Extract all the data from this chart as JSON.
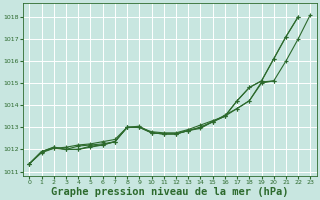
{
  "background_color": "#c8e6e0",
  "grid_color": "#ffffff",
  "line_color": "#2d6a2d",
  "xlabel": "Graphe pression niveau de la mer (hPa)",
  "xlabel_fontsize": 7.5,
  "xlim": [
    -0.5,
    23.5
  ],
  "ylim": [
    1010.8,
    1018.6
  ],
  "yticks": [
    1011,
    1012,
    1013,
    1014,
    1015,
    1016,
    1017,
    1018
  ],
  "xticks": [
    0,
    1,
    2,
    3,
    4,
    5,
    6,
    7,
    8,
    9,
    10,
    11,
    12,
    13,
    14,
    15,
    16,
    17,
    18,
    19,
    20,
    21,
    22,
    23
  ],
  "series": [
    {
      "x": [
        0,
        1,
        2,
        3,
        4,
        5,
        6,
        7,
        8,
        9,
        10,
        11,
        12,
        13,
        14,
        15,
        16,
        17,
        18,
        19,
        20,
        21,
        22
      ],
      "y": [
        1011.35,
        1011.9,
        1012.1,
        1012.0,
        1012.0,
        1012.1,
        1012.2,
        1012.35,
        1013.0,
        1013.0,
        1012.8,
        1012.75,
        1012.75,
        1012.9,
        1013.1,
        1013.3,
        1013.5,
        1014.2,
        1014.8,
        1015.1,
        1016.1,
        1017.1,
        1018.0
      ]
    },
    {
      "x": [
        0,
        1,
        2,
        3,
        4,
        5,
        6,
        7,
        8,
        9,
        10,
        11,
        12,
        13,
        14,
        15,
        16,
        17,
        18,
        19,
        20
      ],
      "y": [
        1011.35,
        1011.9,
        1012.1,
        1012.0,
        1012.0,
        1012.15,
        1012.2,
        1012.35,
        1013.0,
        1013.0,
        1012.75,
        1012.7,
        1012.7,
        1012.85,
        1012.95,
        1013.25,
        1013.55,
        1013.85,
        1014.2,
        1015.05,
        1015.1
      ]
    },
    {
      "x": [
        0,
        1,
        2,
        3,
        4,
        5,
        6,
        7,
        8,
        9,
        10,
        11,
        12,
        13,
        14,
        15,
        16,
        17,
        18,
        19,
        20,
        21,
        22
      ],
      "y": [
        1011.35,
        1011.9,
        1012.05,
        1012.0,
        1012.15,
        1012.2,
        1012.25,
        1012.35,
        1013.0,
        1013.05,
        1012.75,
        1012.7,
        1012.7,
        1012.85,
        1013.0,
        1013.25,
        1013.5,
        1014.2,
        1014.8,
        1015.1,
        1016.1,
        1017.1,
        1018.0
      ]
    },
    {
      "x": [
        0,
        1,
        2,
        3,
        4,
        5,
        6,
        7,
        8,
        9,
        10,
        11,
        12,
        13,
        14,
        15,
        16,
        17,
        18,
        19,
        20,
        21,
        22,
        23
      ],
      "y": [
        1011.35,
        1011.85,
        1012.05,
        1012.1,
        1012.2,
        1012.25,
        1012.35,
        1012.45,
        1013.0,
        1013.0,
        1012.75,
        1012.7,
        1012.7,
        1012.85,
        1013.0,
        1013.25,
        1013.5,
        1013.85,
        1014.2,
        1015.0,
        1015.1,
        1016.0,
        1017.0,
        1018.1
      ]
    }
  ]
}
